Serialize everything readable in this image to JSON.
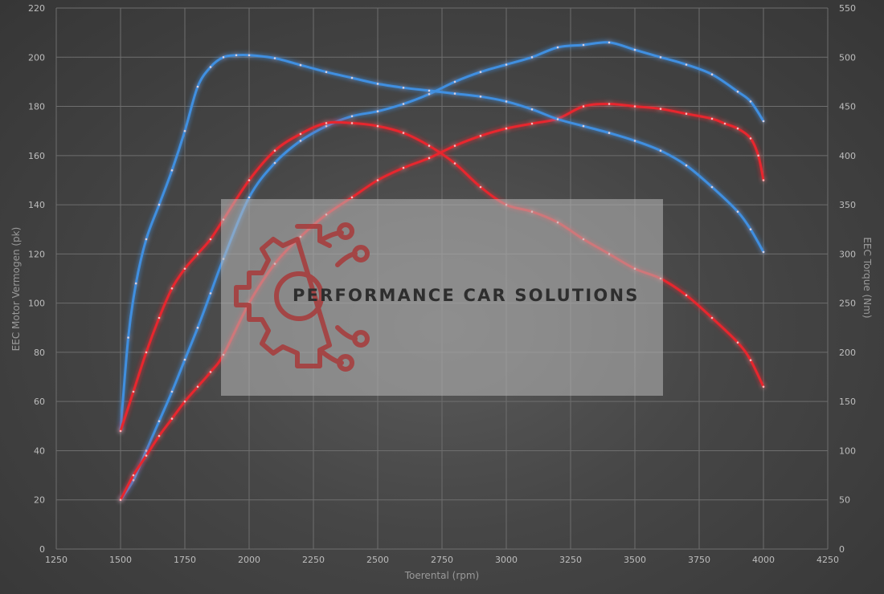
{
  "chart_data": {
    "type": "line",
    "title": "",
    "xlabel": "Toerental (rpm)",
    "ylabel_left": "EEC Motor Vermogen (pk)",
    "ylabel_right": "EEC Torque (Nm)",
    "xlim": [
      1250,
      4250
    ],
    "ylim_left": [
      0,
      220
    ],
    "ylim_right": [
      0,
      550
    ],
    "x_ticks": [
      1250,
      1500,
      1750,
      2000,
      2250,
      2500,
      2750,
      3000,
      3250,
      3500,
      3750,
      4000,
      4250
    ],
    "y_left_ticks": [
      0,
      20,
      40,
      60,
      80,
      100,
      120,
      140,
      160,
      180,
      200,
      220
    ],
    "y_right_ticks": [
      0,
      50,
      100,
      150,
      200,
      250,
      300,
      350,
      400,
      450,
      500,
      550
    ],
    "grid": true,
    "colors": {
      "tuned": "#3f8fe0",
      "stock": "#e8262e"
    },
    "series": [
      {
        "axis": "left",
        "color": "#3f8fe0",
        "x": [
          1500,
          1550,
          1600,
          1650,
          1700,
          1750,
          1800,
          1850,
          1900,
          2000,
          2100,
          2200,
          2300,
          2400,
          2500,
          2600,
          2700,
          2800,
          2900,
          3000,
          3100,
          3200,
          3300,
          3400,
          3500,
          3600,
          3700,
          3800,
          3900,
          3950,
          4000
        ],
        "y": [
          20,
          28,
          40,
          52,
          64,
          77,
          90,
          104,
          118,
          143,
          157,
          166,
          172,
          176,
          178,
          181,
          185,
          190,
          194,
          197,
          200,
          204,
          205,
          206,
          203,
          200,
          197,
          193,
          186,
          182,
          174
        ]
      },
      {
        "axis": "left",
        "color": "#e8262e",
        "x": [
          1500,
          1550,
          1600,
          1650,
          1700,
          1750,
          1800,
          1850,
          1900,
          2000,
          2100,
          2200,
          2300,
          2400,
          2500,
          2600,
          2700,
          2800,
          2900,
          3000,
          3100,
          3200,
          3300,
          3400,
          3500,
          3600,
          3700,
          3800,
          3850,
          3900,
          3950,
          3980,
          4000
        ],
        "y": [
          20,
          30,
          38,
          46,
          53,
          60,
          66,
          72,
          79,
          100,
          116,
          127,
          136,
          143,
          150,
          155,
          159,
          164,
          168,
          171,
          173,
          175,
          180,
          181,
          180,
          179,
          177,
          175,
          173,
          171,
          167,
          160,
          150
        ]
      },
      {
        "axis": "right",
        "color": "#3f8fe0",
        "x": [
          1500,
          1530,
          1560,
          1600,
          1650,
          1700,
          1750,
          1800,
          1850,
          1900,
          1950,
          2000,
          2100,
          2200,
          2300,
          2400,
          2500,
          2600,
          2700,
          2800,
          2900,
          3000,
          3100,
          3200,
          3300,
          3400,
          3500,
          3600,
          3700,
          3800,
          3900,
          3950,
          4000
        ],
        "y": [
          120,
          215,
          270,
          315,
          350,
          385,
          425,
          470,
          490,
          500,
          502,
          502,
          499,
          492,
          485,
          479,
          473,
          469,
          466,
          463,
          460,
          455,
          447,
          437,
          430,
          423,
          415,
          405,
          390,
          368,
          343,
          325,
          302
        ]
      },
      {
        "axis": "right",
        "color": "#e8262e",
        "x": [
          1500,
          1550,
          1600,
          1650,
          1700,
          1750,
          1800,
          1850,
          1900,
          2000,
          2100,
          2200,
          2300,
          2400,
          2500,
          2600,
          2700,
          2800,
          2900,
          3000,
          3100,
          3200,
          3300,
          3400,
          3500,
          3600,
          3700,
          3800,
          3900,
          3950,
          4000
        ],
        "y": [
          120,
          160,
          200,
          235,
          265,
          285,
          300,
          315,
          335,
          375,
          405,
          422,
          433,
          433,
          430,
          423,
          410,
          392,
          368,
          350,
          343,
          332,
          315,
          300,
          285,
          275,
          258,
          235,
          210,
          192,
          165
        ]
      }
    ]
  },
  "watermark": {
    "text": "PERFORMANCE CAR SOLUTIONS",
    "icon": "gear-circuit-icon"
  }
}
